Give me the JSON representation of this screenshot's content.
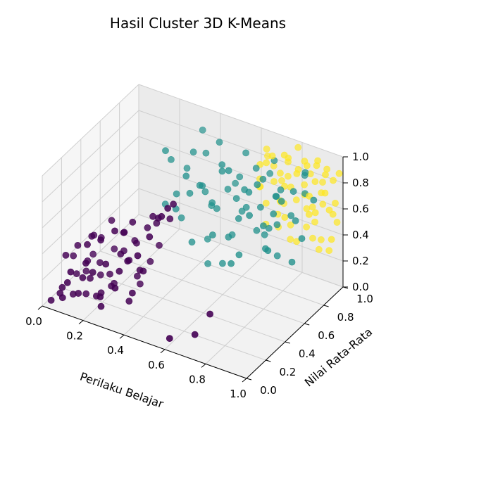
{
  "chart_data": {
    "type": "scatter",
    "title": "Hasil Cluster 3D K-Means",
    "xlabel": "Perilaku Belajar",
    "ylabel": "Nilai Rata-Rata",
    "zlabel": "",
    "xlim": [
      0,
      1
    ],
    "ylim": [
      0,
      1
    ],
    "zlim": [
      0,
      1
    ],
    "xticks": [
      "0.0",
      "0.2",
      "0.4",
      "0.6",
      "0.8",
      "1.0"
    ],
    "yticks": [
      "0.0",
      "0.2",
      "0.4",
      "0.6",
      "0.8",
      "1.0"
    ],
    "zticks": [
      "0.0",
      "0.2",
      "0.4",
      "0.6",
      "0.8",
      "1.0"
    ],
    "grid": true,
    "colormap": "viridis",
    "colors": [
      "#440154",
      "#21918c",
      "#fde725"
    ],
    "series": [
      {
        "color": "#440154",
        "points": [
          [
            0.02,
            0.05,
            0.02
          ],
          [
            0.04,
            0.1,
            0.05
          ],
          [
            0.06,
            0.08,
            0.12
          ],
          [
            0.08,
            0.15,
            0.03
          ],
          [
            0.1,
            0.05,
            0.2
          ],
          [
            0.12,
            0.12,
            0.08
          ],
          [
            0.14,
            0.2,
            0.15
          ],
          [
            0.16,
            0.08,
            0.25
          ],
          [
            0.18,
            0.18,
            0.05
          ],
          [
            0.2,
            0.1,
            0.3
          ],
          [
            0.22,
            0.25,
            0.1
          ],
          [
            0.24,
            0.15,
            0.35
          ],
          [
            0.26,
            0.05,
            0.18
          ],
          [
            0.28,
            0.22,
            0.4
          ],
          [
            0.3,
            0.12,
            0.22
          ],
          [
            0.32,
            0.3,
            0.45
          ],
          [
            0.34,
            0.18,
            0.1
          ],
          [
            0.36,
            0.25,
            0.3
          ],
          [
            0.38,
            0.08,
            0.5
          ],
          [
            0.4,
            0.2,
            0.35
          ],
          [
            0.05,
            0.25,
            0.1
          ],
          [
            0.08,
            0.3,
            0.18
          ],
          [
            0.12,
            0.35,
            0.06
          ],
          [
            0.15,
            0.28,
            0.22
          ],
          [
            0.18,
            0.32,
            0.12
          ],
          [
            0.22,
            0.38,
            0.28
          ],
          [
            0.26,
            0.3,
            0.5
          ],
          [
            0.3,
            0.35,
            0.15
          ],
          [
            0.34,
            0.4,
            0.25
          ],
          [
            0.03,
            0.18,
            0.28
          ],
          [
            0.07,
            0.22,
            0.35
          ],
          [
            0.11,
            0.28,
            0.4
          ],
          [
            0.15,
            0.15,
            0.45
          ],
          [
            0.19,
            0.05,
            0.4
          ],
          [
            0.23,
            0.12,
            0.55
          ],
          [
            0.27,
            0.18,
            0.6
          ],
          [
            0.31,
            0.28,
            0.62
          ],
          [
            0.35,
            0.35,
            0.55
          ],
          [
            0.4,
            0.3,
            0.7
          ],
          [
            0.45,
            0.25,
            0.75
          ],
          [
            0.1,
            0.4,
            0.3
          ],
          [
            0.14,
            0.45,
            0.2
          ],
          [
            0.2,
            0.42,
            0.38
          ],
          [
            0.05,
            0.35,
            0.05
          ],
          [
            0.09,
            0.02,
            0.1
          ],
          [
            0.13,
            0.02,
            0.32
          ],
          [
            0.17,
            0.25,
            0.02
          ],
          [
            0.21,
            0.3,
            0.08
          ],
          [
            0.25,
            0.08,
            0.08
          ],
          [
            0.29,
            0.4,
            0.05
          ],
          [
            0.02,
            0.28,
            0.2
          ],
          [
            0.06,
            0.4,
            0.15
          ],
          [
            0.16,
            0.38,
            0.48
          ],
          [
            0.24,
            0.45,
            0.32
          ],
          [
            0.33,
            0.1,
            0.38
          ],
          [
            0.37,
            0.15,
            0.2
          ],
          [
            0.42,
            0.1,
            0.55
          ],
          [
            0.44,
            0.18,
            0.65
          ],
          [
            0.48,
            0.22,
            0.8
          ],
          [
            0.5,
            0.3,
            0.85
          ],
          [
            0.6,
            0.05,
            0.05
          ],
          [
            0.7,
            0.1,
            0.1
          ],
          [
            0.75,
            0.15,
            0.25
          ],
          [
            0.04,
            0.45,
            0.25
          ],
          [
            0.36,
            0.45,
            0.35
          ],
          [
            0.12,
            0.2,
            0.02
          ],
          [
            0.26,
            0.35,
            0.25
          ],
          [
            0.38,
            0.38,
            0.58
          ],
          [
            0.46,
            0.35,
            0.68
          ],
          [
            0.52,
            0.2,
            0.9
          ]
        ]
      },
      {
        "color": "#21918c",
        "points": [
          [
            0.3,
            0.7,
            0.8
          ],
          [
            0.35,
            0.65,
            0.6
          ],
          [
            0.4,
            0.72,
            0.9
          ],
          [
            0.45,
            0.68,
            0.7
          ],
          [
            0.5,
            0.75,
            0.5
          ],
          [
            0.55,
            0.7,
            0.85
          ],
          [
            0.6,
            0.66,
            0.4
          ],
          [
            0.65,
            0.72,
            0.75
          ],
          [
            0.7,
            0.78,
            0.6
          ],
          [
            0.75,
            0.7,
            0.9
          ],
          [
            0.8,
            0.74,
            0.55
          ],
          [
            0.85,
            0.68,
            0.8
          ],
          [
            0.9,
            0.72,
            0.65
          ],
          [
            0.32,
            0.6,
            0.95
          ],
          [
            0.38,
            0.58,
            0.55
          ],
          [
            0.44,
            0.62,
            0.3
          ],
          [
            0.5,
            0.6,
            0.78
          ],
          [
            0.56,
            0.58,
            0.45
          ],
          [
            0.62,
            0.62,
            0.95
          ],
          [
            0.68,
            0.6,
            0.35
          ],
          [
            0.74,
            0.58,
            0.7
          ],
          [
            0.8,
            0.62,
            0.45
          ],
          [
            0.86,
            0.6,
            0.9
          ],
          [
            0.34,
            0.78,
            0.7
          ],
          [
            0.42,
            0.8,
            0.55
          ],
          [
            0.48,
            0.82,
            0.95
          ],
          [
            0.54,
            0.78,
            0.65
          ],
          [
            0.6,
            0.8,
            0.5
          ],
          [
            0.66,
            0.82,
            0.85
          ],
          [
            0.72,
            0.78,
            0.4
          ],
          [
            0.78,
            0.82,
            0.75
          ],
          [
            0.84,
            0.8,
            0.6
          ],
          [
            0.9,
            0.82,
            0.95
          ],
          [
            0.36,
            0.68,
            0.4
          ],
          [
            0.46,
            0.74,
            0.25
          ],
          [
            0.52,
            0.66,
            0.62
          ],
          [
            0.58,
            0.74,
            0.35
          ],
          [
            0.64,
            0.68,
            0.55
          ],
          [
            0.7,
            0.66,
            0.8
          ],
          [
            0.76,
            0.74,
            0.5
          ],
          [
            0.82,
            0.66,
            0.7
          ],
          [
            0.88,
            0.74,
            0.85
          ],
          [
            0.94,
            0.7,
            0.55
          ],
          [
            0.4,
            0.85,
            0.8
          ],
          [
            0.56,
            0.86,
            0.7
          ],
          [
            0.72,
            0.88,
            0.9
          ],
          [
            0.88,
            0.86,
            0.75
          ],
          [
            0.3,
            0.64,
            0.5
          ],
          [
            0.62,
            0.7,
            0.68
          ],
          [
            0.78,
            0.64,
            0.6
          ],
          [
            0.96,
            0.78,
            0.8
          ],
          [
            0.44,
            0.56,
            0.85
          ],
          [
            0.66,
            0.56,
            0.3
          ],
          [
            0.84,
            0.56,
            0.5
          ],
          [
            0.52,
            0.9,
            0.6
          ],
          [
            0.68,
            0.92,
            0.75
          ],
          [
            0.36,
            0.9,
            0.92
          ],
          [
            0.92,
            0.64,
            0.4
          ],
          [
            0.58,
            0.64,
            0.2
          ],
          [
            0.48,
            0.7,
            0.1
          ],
          [
            0.74,
            0.86,
            0.65
          ],
          [
            0.86,
            0.9,
            0.85
          ],
          [
            0.42,
            0.64,
            0.65
          ],
          [
            0.6,
            0.84,
            0.92
          ],
          [
            0.76,
            0.62,
            0.92
          ],
          [
            0.54,
            0.72,
            0.88
          ],
          [
            0.7,
            0.74,
            0.45
          ],
          [
            0.82,
            0.7,
            0.35
          ],
          [
            0.46,
            0.78,
            0.48
          ],
          [
            0.64,
            0.76,
            0.58
          ]
        ]
      },
      {
        "color": "#fde725",
        "points": [
          [
            0.65,
            0.95,
            0.9
          ],
          [
            0.7,
            0.92,
            0.7
          ],
          [
            0.75,
            0.96,
            0.85
          ],
          [
            0.8,
            0.94,
            0.6
          ],
          [
            0.85,
            0.98,
            0.8
          ],
          [
            0.9,
            0.95,
            0.95
          ],
          [
            0.95,
            0.92,
            0.75
          ],
          [
            1.0,
            0.96,
            0.9
          ],
          [
            0.68,
            0.88,
            0.55
          ],
          [
            0.74,
            0.9,
            0.8
          ],
          [
            0.8,
            0.88,
            0.45
          ],
          [
            0.86,
            0.9,
            0.7
          ],
          [
            0.92,
            0.88,
            0.85
          ],
          [
            0.98,
            0.9,
            0.65
          ],
          [
            0.72,
            0.98,
            0.5
          ],
          [
            0.78,
            1.0,
            0.95
          ],
          [
            0.84,
            0.96,
            0.4
          ],
          [
            0.9,
            1.0,
            0.75
          ],
          [
            0.96,
            0.98,
            0.55
          ],
          [
            0.66,
            0.92,
            0.35
          ],
          [
            0.72,
            0.86,
            0.95
          ],
          [
            0.78,
            0.92,
            0.3
          ],
          [
            0.84,
            0.86,
            0.88
          ],
          [
            0.9,
            0.92,
            0.5
          ],
          [
            0.96,
            0.86,
            0.8
          ],
          [
            1.0,
            0.88,
            0.45
          ],
          [
            0.7,
            1.0,
            0.65
          ],
          [
            0.76,
            0.94,
            0.9
          ],
          [
            0.82,
            0.98,
            0.7
          ],
          [
            0.88,
            0.94,
            0.35
          ],
          [
            0.94,
            0.96,
            0.9
          ],
          [
            0.68,
            0.96,
            0.78
          ],
          [
            0.74,
            0.88,
            0.4
          ],
          [
            0.8,
            0.96,
            0.82
          ],
          [
            0.86,
            0.92,
            0.58
          ],
          [
            0.92,
            0.96,
            0.62
          ],
          [
            0.98,
            0.94,
            0.85
          ],
          [
            0.64,
            0.9,
            0.7
          ],
          [
            0.7,
            0.84,
            0.9
          ],
          [
            0.76,
            0.86,
            0.62
          ],
          [
            0.82,
            0.84,
            0.78
          ],
          [
            0.88,
            0.88,
            0.95
          ],
          [
            0.94,
            0.9,
            0.4
          ],
          [
            1.0,
            0.92,
            0.7
          ],
          [
            0.66,
            0.86,
            0.85
          ],
          [
            0.72,
            0.94,
            0.55
          ],
          [
            0.78,
            0.86,
            0.75
          ],
          [
            0.84,
            0.94,
            0.92
          ],
          [
            0.9,
            0.86,
            0.6
          ],
          [
            0.96,
            0.94,
            0.3
          ],
          [
            0.62,
            0.94,
            0.6
          ],
          [
            0.68,
            0.82,
            0.72
          ],
          [
            0.74,
            0.98,
            0.72
          ],
          [
            0.8,
            0.82,
            0.55
          ],
          [
            0.86,
            0.98,
            0.55
          ],
          [
            0.92,
            0.82,
            0.78
          ],
          [
            0.98,
            0.86,
            0.95
          ],
          [
            0.64,
            0.98,
            0.82
          ],
          [
            0.76,
            0.9,
            0.95
          ],
          [
            0.88,
            0.98,
            0.88
          ],
          [
            0.94,
            0.84,
            0.65
          ],
          [
            0.7,
            0.96,
            0.42
          ],
          [
            0.82,
            0.9,
            0.32
          ],
          [
            0.92,
            0.92,
            0.3
          ],
          [
            0.98,
            0.98,
            0.5
          ]
        ]
      }
    ]
  }
}
